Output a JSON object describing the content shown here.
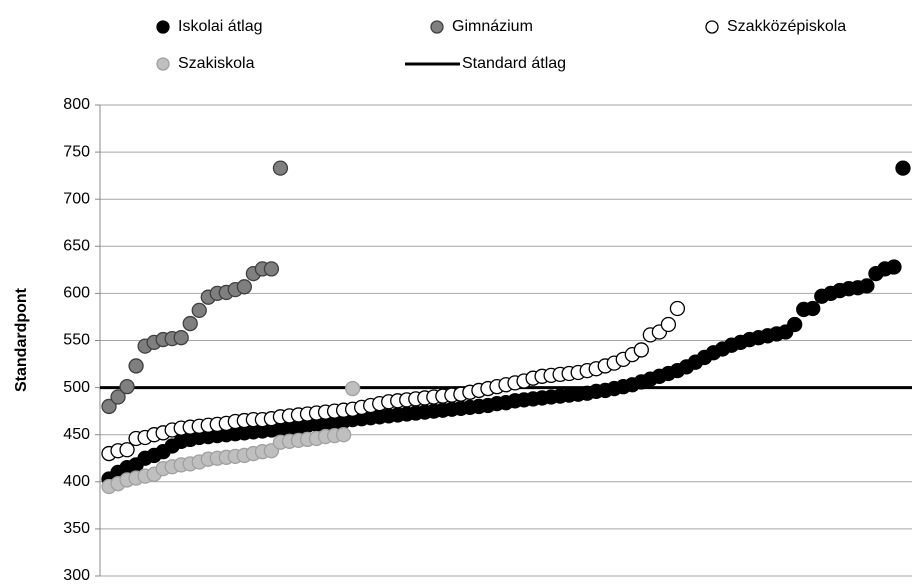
{
  "chart_data": {
    "type": "scatter",
    "y_label": "Standardpont",
    "ylim": [
      300,
      800
    ],
    "yticks": [
      300,
      350,
      400,
      450,
      500,
      550,
      600,
      650,
      700,
      750,
      800
    ],
    "xlim": [
      0,
      90
    ],
    "grid": true,
    "series": [
      {
        "name": "Iskolai átlag",
        "color": "#000000",
        "values": [
          403,
          410,
          415,
          418,
          425,
          428,
          432,
          438,
          443,
          445,
          447,
          448,
          449,
          450,
          451,
          452,
          453,
          454,
          455,
          456,
          457,
          458,
          460,
          461,
          462,
          463,
          464,
          466,
          467,
          468,
          469,
          470,
          471,
          472,
          473,
          474,
          475,
          476,
          477,
          478,
          479,
          480,
          481,
          483,
          484,
          486,
          487,
          488,
          489,
          490,
          491,
          492,
          493,
          494,
          496,
          497,
          499,
          501,
          503,
          506,
          509,
          512,
          515,
          518,
          522,
          527,
          532,
          537,
          541,
          545,
          548,
          551,
          553,
          555,
          557,
          559,
          567,
          583,
          584,
          597,
          600,
          603,
          605,
          606,
          608,
          621,
          626,
          628,
          733
        ]
      },
      {
        "name": "Gimnázium",
        "color": "#7f7f7f",
        "values": [
          480,
          490,
          501,
          523,
          544,
          548,
          551,
          552,
          553,
          568,
          582,
          596,
          600,
          601,
          604,
          607,
          621,
          626,
          626,
          733
        ]
      },
      {
        "name": "Szakközépiskola",
        "color": "#ffffff",
        "values": [
          430,
          433,
          434,
          446,
          447,
          450,
          452,
          455,
          457,
          458,
          459,
          460,
          461,
          462,
          464,
          465,
          466,
          466,
          467,
          469,
          470,
          471,
          472,
          473,
          474,
          475,
          476,
          477,
          479,
          481,
          483,
          485,
          486,
          487,
          488,
          489,
          490,
          491,
          492,
          493,
          495,
          497,
          499,
          501,
          503,
          505,
          507,
          510,
          512,
          513,
          514,
          515,
          516,
          518,
          520,
          523,
          526,
          530,
          535,
          540,
          556,
          559,
          567,
          584
        ]
      },
      {
        "name": "Szakiskola",
        "color": "#bfbfbf",
        "values": [
          395,
          398,
          402,
          404,
          406,
          408,
          414,
          416,
          418,
          419,
          421,
          424,
          425,
          426,
          427,
          428,
          430,
          432,
          433,
          442,
          443,
          444,
          445,
          446,
          448,
          449,
          450,
          499
        ]
      }
    ],
    "reference": {
      "name": "Standard átlag",
      "value": 500,
      "color": "#000000"
    }
  }
}
